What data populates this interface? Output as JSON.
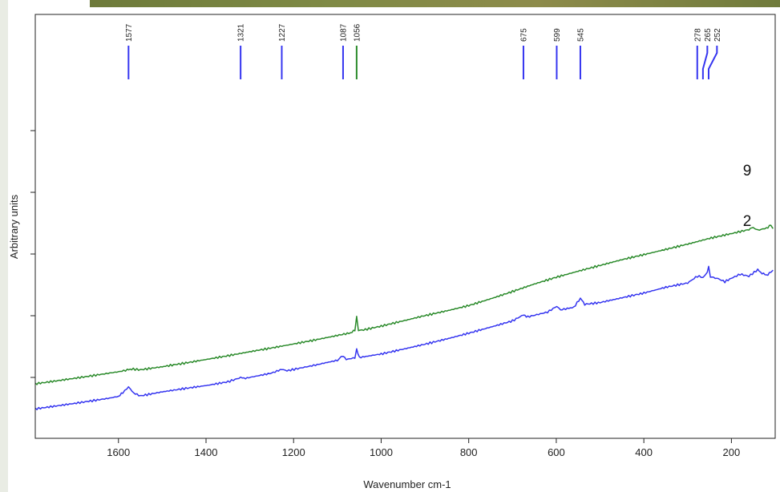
{
  "chart_data": {
    "type": "line",
    "xlabel": "Wavenumber cm-1",
    "ylabel": "Arbitrary units",
    "xlim": [
      1790,
      100
    ],
    "x_reversed": true,
    "x_ticks": [
      1600,
      1400,
      1200,
      1000,
      800,
      600,
      400,
      200
    ],
    "y_ticks_count": 5,
    "ylim": [
      0,
      100
    ],
    "grid": false,
    "colors": {
      "blue": "#3535f0",
      "green": "#2a8a2a"
    },
    "series": [
      {
        "name": "9",
        "color": "#2a8a2a",
        "points": [
          [
            1790,
            13.1
          ],
          [
            1700,
            15.3
          ],
          [
            1600,
            17.9
          ],
          [
            1580,
            18.6
          ],
          [
            1570,
            19.0
          ],
          [
            1550,
            18.7
          ],
          [
            1500,
            19.9
          ],
          [
            1470,
            20.8
          ],
          [
            1450,
            21.3
          ],
          [
            1400,
            22.8
          ],
          [
            1350,
            24.3
          ],
          [
            1300,
            25.9
          ],
          [
            1250,
            27.4
          ],
          [
            1200,
            29.0
          ],
          [
            1150,
            30.6
          ],
          [
            1100,
            32.4
          ],
          [
            1070,
            33.4
          ],
          [
            1060,
            34.4
          ],
          [
            1056,
            39.8
          ],
          [
            1052,
            34.4
          ],
          [
            1040,
            34.6
          ],
          [
            1000,
            36.1
          ],
          [
            950,
            38.2
          ],
          [
            900,
            40.3
          ],
          [
            850,
            42.2
          ],
          [
            800,
            44.3
          ],
          [
            750,
            47.0
          ],
          [
            700,
            49.9
          ],
          [
            650,
            52.9
          ],
          [
            600,
            55.6
          ],
          [
            550,
            58.0
          ],
          [
            500,
            60.3
          ],
          [
            450,
            62.6
          ],
          [
            400,
            64.6
          ],
          [
            350,
            66.7
          ],
          [
            300,
            68.8
          ],
          [
            250,
            71.1
          ],
          [
            200,
            73.0
          ],
          [
            160,
            74.6
          ],
          [
            150,
            75.5
          ],
          [
            140,
            74.3
          ],
          [
            120,
            75.2
          ],
          [
            110,
            76.4
          ],
          [
            105,
            75.0
          ]
        ]
      },
      {
        "name": "2",
        "color": "#3535f0",
        "points": [
          [
            1790,
            3.1
          ],
          [
            1700,
            5.3
          ],
          [
            1620,
            7.4
          ],
          [
            1600,
            8.1
          ],
          [
            1590,
            9.5
          ],
          [
            1577,
            11.9
          ],
          [
            1565,
            9.4
          ],
          [
            1550,
            8.3
          ],
          [
            1500,
            9.9
          ],
          [
            1450,
            11.2
          ],
          [
            1400,
            12.4
          ],
          [
            1350,
            13.9
          ],
          [
            1321,
            15.6
          ],
          [
            1310,
            15.3
          ],
          [
            1250,
            17.4
          ],
          [
            1227,
            18.9
          ],
          [
            1215,
            18.3
          ],
          [
            1150,
            20.6
          ],
          [
            1100,
            22.5
          ],
          [
            1087,
            24.4
          ],
          [
            1080,
            22.8
          ],
          [
            1060,
            23.5
          ],
          [
            1056,
            26.9
          ],
          [
            1050,
            23.6
          ],
          [
            1000,
            25.0
          ],
          [
            950,
            26.9
          ],
          [
            900,
            28.9
          ],
          [
            850,
            31.0
          ],
          [
            800,
            33.3
          ],
          [
            750,
            35.7
          ],
          [
            700,
            38.2
          ],
          [
            675,
            40.6
          ],
          [
            665,
            39.8
          ],
          [
            620,
            41.7
          ],
          [
            599,
            44.0
          ],
          [
            590,
            42.6
          ],
          [
            560,
            43.6
          ],
          [
            545,
            47.2
          ],
          [
            535,
            44.8
          ],
          [
            500,
            45.5
          ],
          [
            450,
            47.4
          ],
          [
            400,
            49.3
          ],
          [
            350,
            51.6
          ],
          [
            300,
            53.3
          ],
          [
            278,
            56.0
          ],
          [
            265,
            55.6
          ],
          [
            255,
            57.5
          ],
          [
            252,
            59.6
          ],
          [
            248,
            55.8
          ],
          [
            230,
            55.0
          ],
          [
            215,
            53.8
          ],
          [
            200,
            55.2
          ],
          [
            180,
            56.8
          ],
          [
            160,
            56.0
          ],
          [
            140,
            58.6
          ],
          [
            130,
            57.2
          ],
          [
            120,
            56.4
          ],
          [
            110,
            57.6
          ],
          [
            105,
            58.4
          ]
        ]
      }
    ],
    "series_labels": [
      {
        "text": "9",
        "x": 130,
        "y": 80
      },
      {
        "text": "2",
        "x": 130,
        "y": 65
      }
    ],
    "peak_markers": [
      {
        "label": "1577",
        "x": 1577,
        "color": "#3535f0"
      },
      {
        "label": "1321",
        "x": 1321,
        "color": "#3535f0"
      },
      {
        "label": "1227",
        "x": 1227,
        "color": "#3535f0"
      },
      {
        "label": "1087",
        "x": 1087,
        "color": "#3535f0"
      },
      {
        "label": "1056",
        "x": 1056,
        "color": "#2a8a2a"
      },
      {
        "label": "675",
        "x": 675,
        "color": "#3535f0"
      },
      {
        "label": "599",
        "x": 599,
        "color": "#3535f0"
      },
      {
        "label": "545",
        "x": 545,
        "color": "#3535f0"
      },
      {
        "label": "278",
        "x": 278,
        "color": "#3535f0"
      },
      {
        "label": "265",
        "x": 265,
        "label_x": 255,
        "color": "#3535f0"
      },
      {
        "label": "252",
        "x": 252,
        "label_x": 233,
        "color": "#3535f0"
      }
    ]
  }
}
